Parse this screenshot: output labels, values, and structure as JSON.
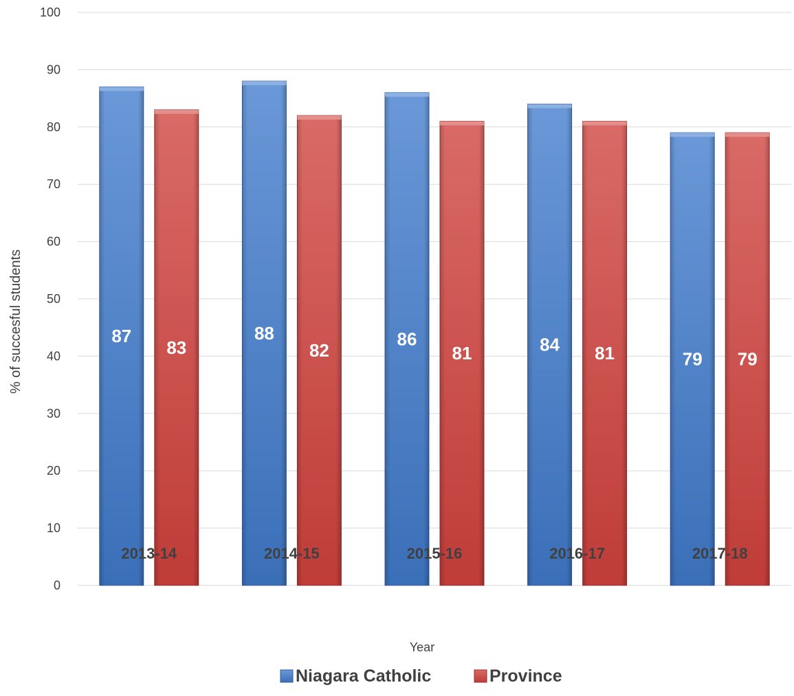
{
  "chart_data": {
    "type": "bar",
    "categories": [
      "2013-14",
      "2014-15",
      "2015-16",
      "2016-17",
      "2017-18"
    ],
    "series": [
      {
        "name": "Niagara Catholic",
        "values": [
          87,
          88,
          86,
          84,
          79
        ],
        "color": "#4a7fc9"
      },
      {
        "name": "Province",
        "values": [
          83,
          82,
          81,
          81,
          79
        ],
        "color": "#cc4a47"
      }
    ],
    "title": "",
    "xlabel": "Year",
    "ylabel": "% of succesful students",
    "ylim": [
      0,
      100
    ],
    "yticks": [
      0,
      10,
      20,
      30,
      40,
      50,
      60,
      70,
      80,
      90,
      100
    ],
    "grid": true,
    "legend_position": "bottom"
  }
}
